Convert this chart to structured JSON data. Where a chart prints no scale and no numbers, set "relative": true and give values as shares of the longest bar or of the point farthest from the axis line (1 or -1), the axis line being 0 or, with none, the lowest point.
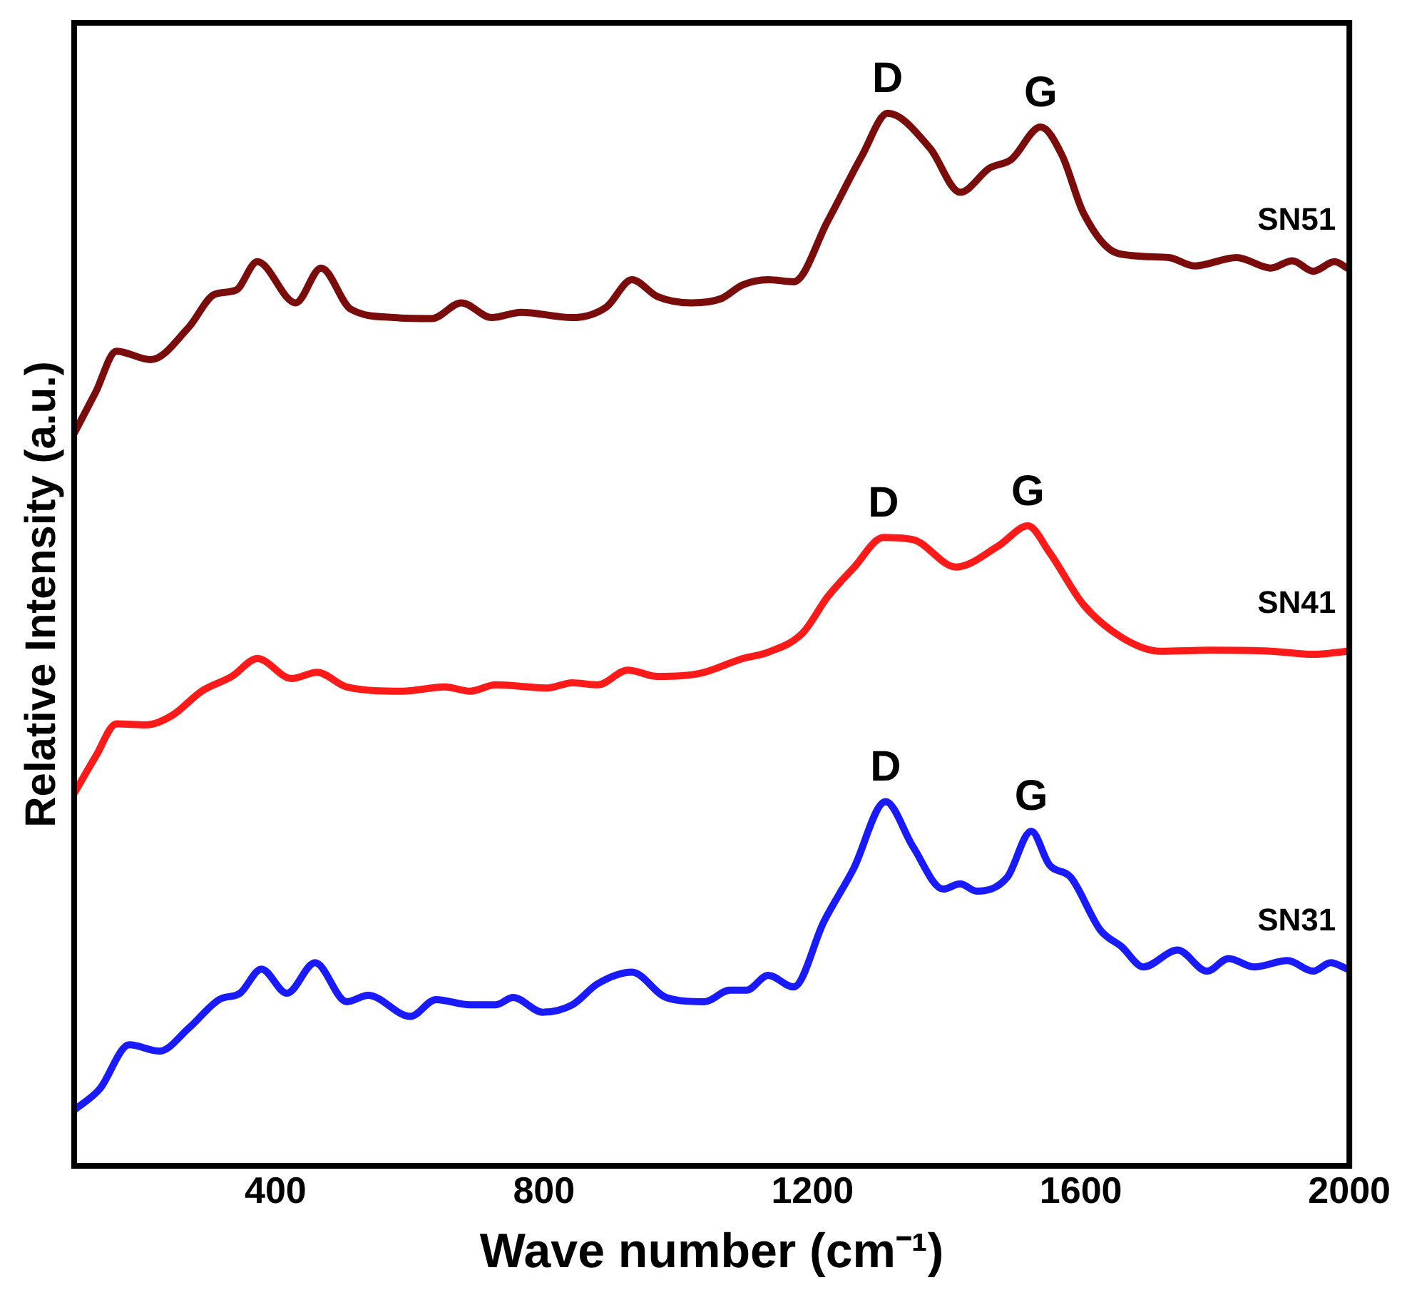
{
  "chart_data": {
    "type": "line",
    "xlabel": "Wave number (cm⁻¹)",
    "ylabel": "Relative Intensity (a.u.)",
    "relative": true,
    "xlim": [
      100,
      2000
    ],
    "xticks": [
      400,
      800,
      1200,
      1600,
      2000
    ],
    "tick_labels": "x",
    "grid": false,
    "legend": false,
    "marker": "none",
    "line_style": "solid",
    "series": [
      {
        "name": "SN51",
        "color": "#7b0c0c",
        "x": [
          100,
          132,
          163,
          214,
          271,
          309,
          341,
          373,
          430,
          468,
          512,
          576,
          633,
          677,
          722,
          766,
          842,
          893,
          931,
          969,
          1020,
          1064,
          1096,
          1134,
          1172,
          1223,
          1274,
          1312,
          1375,
          1420,
          1464,
          1496,
          1540,
          1572,
          1604,
          1655,
          1731,
          1769,
          1832,
          1883,
          1915,
          1946,
          1978,
          1997
        ],
        "values": [
          0.696,
          0.735,
          0.774,
          0.766,
          0.797,
          0.828,
          0.832,
          0.859,
          0.82,
          0.853,
          0.814,
          0.806,
          0.805,
          0.82,
          0.806,
          0.811,
          0.806,
          0.816,
          0.842,
          0.826,
          0.82,
          0.824,
          0.837,
          0.842,
          0.84,
          0.898,
          0.96,
          1.0,
          0.967,
          0.925,
          0.948,
          0.956,
          0.987,
          0.96,
          0.905,
          0.867,
          0.863,
          0.855,
          0.863,
          0.853,
          0.86,
          0.85,
          0.859,
          0.853
        ]
      },
      {
        "name": "SN41",
        "color": "#ff1a1a",
        "x": [
          100,
          132,
          163,
          208,
          246,
          290,
          335,
          373,
          424,
          462,
          506,
          589,
          652,
          690,
          728,
          805,
          842,
          880,
          925,
          969,
          1033,
          1096,
          1134,
          1185,
          1223,
          1261,
          1306,
          1350,
          1414,
          1477,
          1521,
          1553,
          1604,
          1661,
          1718,
          1794,
          1883,
          1946,
          1997
        ],
        "values": [
          0.354,
          0.389,
          0.42,
          0.419,
          0.428,
          0.451,
          0.465,
          0.482,
          0.463,
          0.469,
          0.455,
          0.451,
          0.455,
          0.451,
          0.457,
          0.454,
          0.459,
          0.457,
          0.471,
          0.465,
          0.468,
          0.482,
          0.488,
          0.506,
          0.541,
          0.568,
          0.597,
          0.595,
          0.569,
          0.589,
          0.608,
          0.583,
          0.533,
          0.502,
          0.489,
          0.49,
          0.489,
          0.486,
          0.489
        ]
      },
      {
        "name": "SN31",
        "color": "#1a1aff",
        "x": [
          100,
          138,
          182,
          227,
          271,
          316,
          347,
          379,
          417,
          459,
          506,
          538,
          601,
          639,
          690,
          728,
          754,
          798,
          842,
          880,
          931,
          982,
          1039,
          1077,
          1102,
          1134,
          1172,
          1217,
          1261,
          1309,
          1350,
          1395,
          1420,
          1445,
          1490,
          1526,
          1553,
          1585,
          1629,
          1661,
          1693,
          1744,
          1788,
          1820,
          1858,
          1908,
          1946,
          1972,
          1997
        ],
        "values": [
          0.053,
          0.073,
          0.115,
          0.109,
          0.131,
          0.158,
          0.164,
          0.187,
          0.164,
          0.193,
          0.156,
          0.162,
          0.142,
          0.158,
          0.153,
          0.153,
          0.16,
          0.146,
          0.153,
          0.173,
          0.184,
          0.16,
          0.156,
          0.167,
          0.167,
          0.181,
          0.17,
          0.232,
          0.282,
          0.346,
          0.303,
          0.263,
          0.268,
          0.261,
          0.274,
          0.318,
          0.286,
          0.274,
          0.224,
          0.208,
          0.189,
          0.205,
          0.185,
          0.197,
          0.189,
          0.195,
          0.185,
          0.193,
          0.187
        ]
      }
    ],
    "annotations": [
      {
        "text": "D",
        "x": 1312,
        "y": 1.0
      },
      {
        "text": "G",
        "x": 1540,
        "y": 0.987
      },
      {
        "text": "D",
        "x": 1306,
        "y": 0.597
      },
      {
        "text": "G",
        "x": 1521,
        "y": 0.608
      },
      {
        "text": "D",
        "x": 1309,
        "y": 0.346
      },
      {
        "text": "G",
        "x": 1526,
        "y": 0.318
      }
    ]
  }
}
